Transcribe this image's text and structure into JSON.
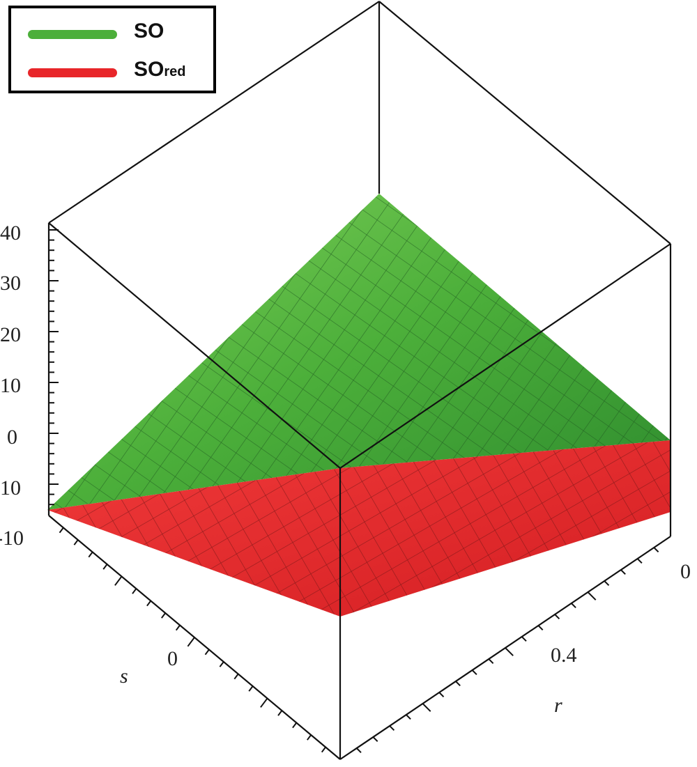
{
  "chart_data": {
    "type": "surface3d",
    "title": "",
    "legend": {
      "placement": "top-left",
      "entries": [
        {
          "name": "SO",
          "color": "#4caf3a"
        },
        {
          "name": "SO",
          "subscript": "red",
          "color": "#e8262a"
        }
      ]
    },
    "axes": {
      "z": {
        "label": "",
        "ticks": [
          "40",
          "30",
          "20",
          "10",
          "0",
          "10",
          "-10"
        ]
      },
      "s": {
        "label": "s",
        "ticks": [
          "0"
        ]
      },
      "r": {
        "label": "r",
        "ticks": [
          "0",
          "0.4"
        ]
      }
    },
    "series": [
      {
        "name": "SO",
        "color": "#4caf3a",
        "corners_z": {
          "far": 40,
          "left": -15,
          "right": 0,
          "near": -15
        }
      },
      {
        "name": "SO_red",
        "color": "#e8262a",
        "corners_z": {
          "far": -15,
          "left": -15,
          "right": -15,
          "near": -45
        }
      }
    ]
  }
}
